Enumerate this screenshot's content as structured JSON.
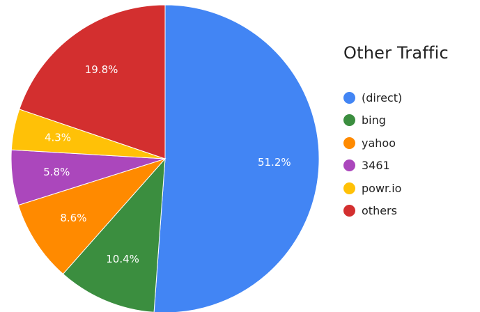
{
  "chart_data": {
    "type": "pie",
    "title": "Other Traffic",
    "legend_position": "right",
    "slices": [
      {
        "label": "(direct)",
        "value": 51.2,
        "value_label": "51.2%",
        "color": "#4285F4"
      },
      {
        "label": "bing",
        "value": 10.4,
        "value_label": "10.4%",
        "color": "#3B8E3F"
      },
      {
        "label": "yahoo",
        "value": 8.6,
        "value_label": "8.6%",
        "color": "#FF8A00"
      },
      {
        "label": "3461",
        "value": 5.8,
        "value_label": "5.8%",
        "color": "#AB47BC"
      },
      {
        "label": "powr.io",
        "value": 4.3,
        "value_label": "4.3%",
        "color": "#FFC107"
      },
      {
        "label": "others",
        "value": 19.8,
        "value_label": "19.8%",
        "color": "#D32F2F"
      }
    ]
  }
}
